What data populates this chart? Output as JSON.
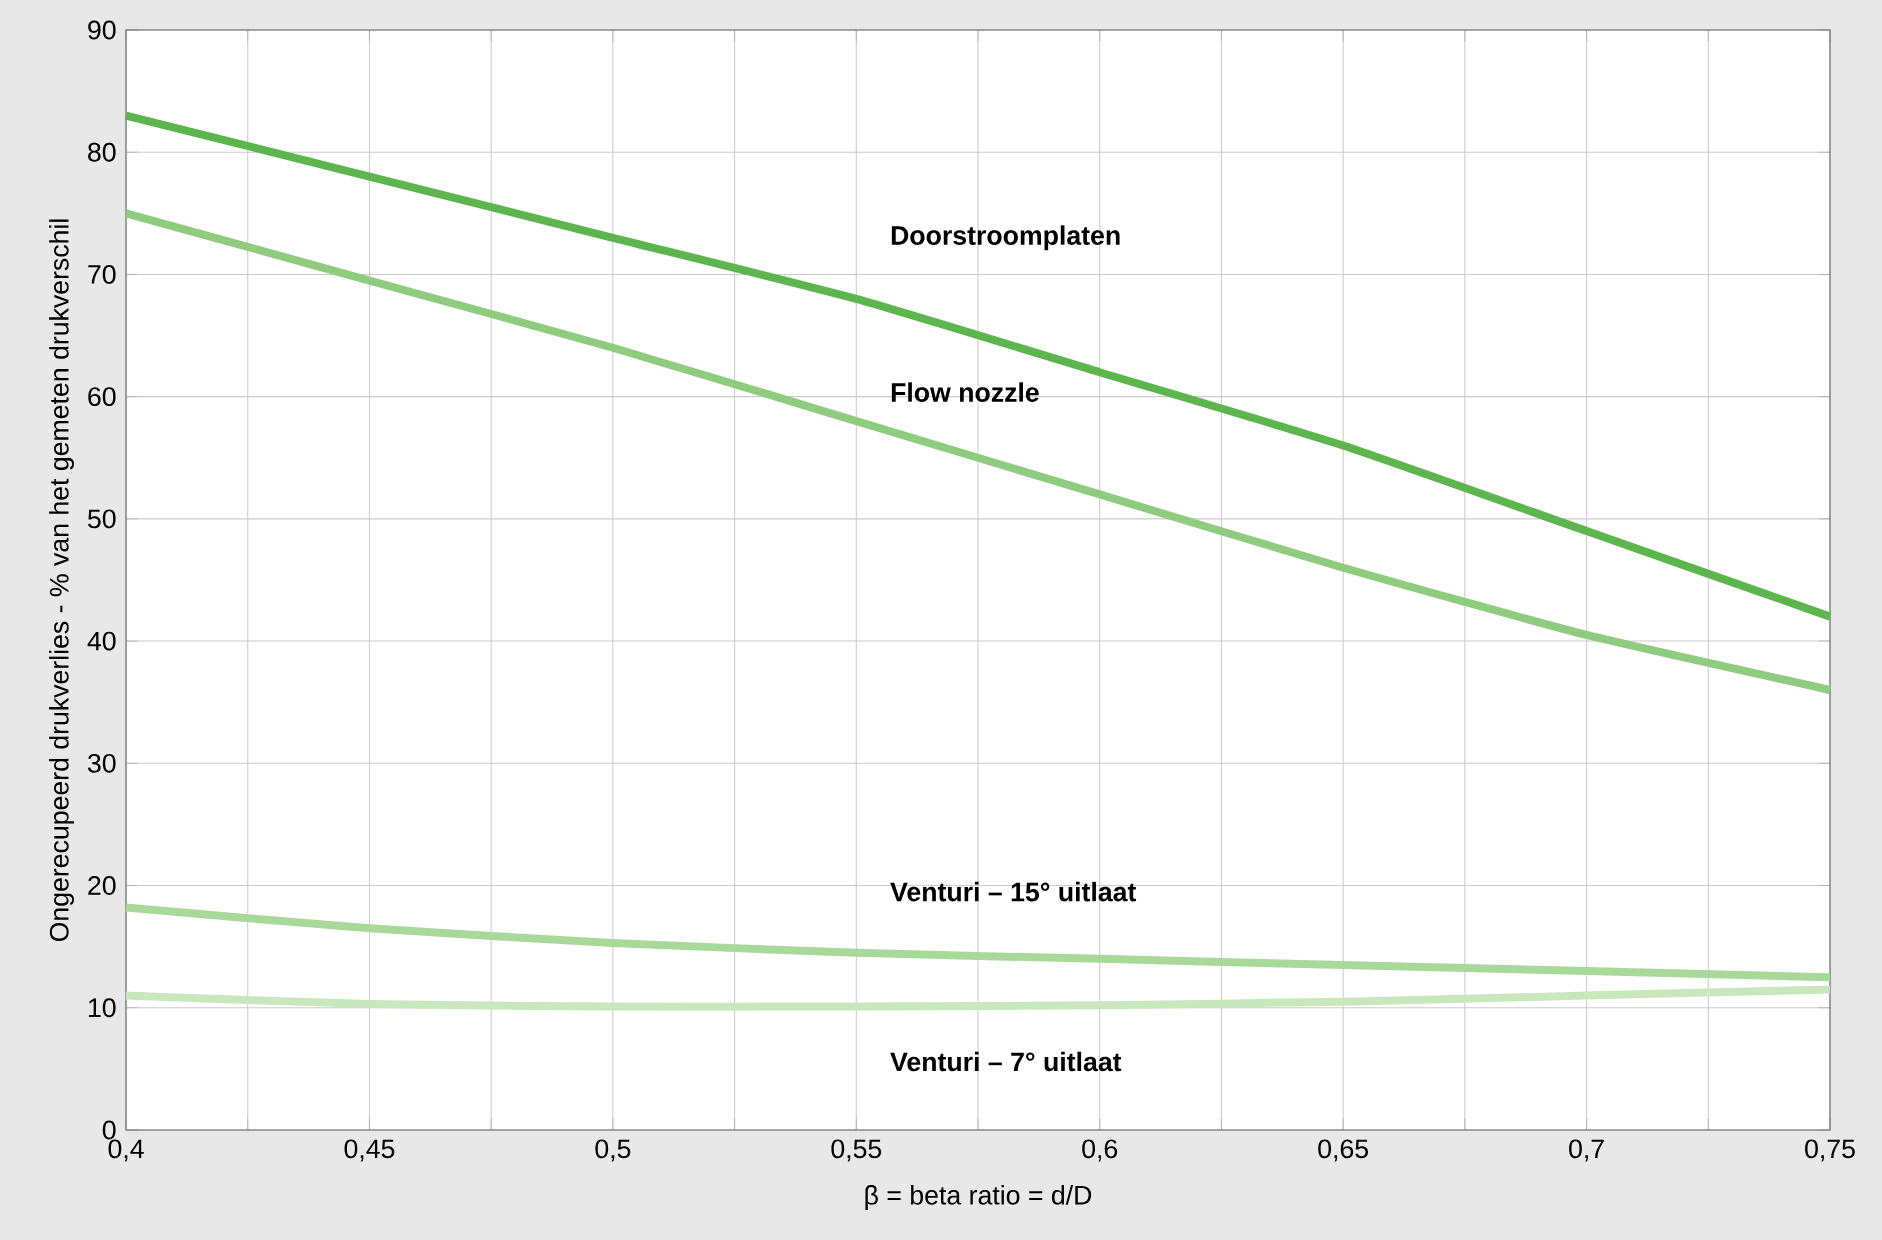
{
  "chart_data": {
    "type": "line",
    "xlabel": "β = beta ratio = d/D",
    "ylabel": "Ongerecupeerd drukverlies - % van het gemeten drukverschil",
    "x": [
      0.4,
      0.45,
      0.5,
      0.55,
      0.6,
      0.65,
      0.7,
      0.75
    ],
    "series": [
      {
        "name": "Doorstroomplaten",
        "color": "#5cb54d",
        "values": [
          83,
          78,
          73,
          68,
          62,
          56,
          49,
          42
        ]
      },
      {
        "name": "Flow nozzle",
        "color": "#8fcc7f",
        "values": [
          75,
          69.5,
          64,
          58,
          52,
          46,
          40.5,
          36
        ]
      },
      {
        "name": "Venturi – 15° uitlaat",
        "color": "#a9d99a",
        "values": [
          18.2,
          16.5,
          15.3,
          14.5,
          14,
          13.5,
          13,
          12.5
        ]
      },
      {
        "name": "Venturi – 7° uitlaat",
        "color": "#c9e7bc",
        "values": [
          11,
          10.3,
          10.1,
          10.1,
          10.2,
          10.5,
          11,
          11.5
        ]
      }
    ],
    "xlim": [
      0.4,
      0.75
    ],
    "ylim": [
      0,
      90
    ],
    "xticks": [
      {
        "value": 0.4,
        "label": "0,4"
      },
      {
        "value": 0.425,
        "label": null
      },
      {
        "value": 0.45,
        "label": "0,45"
      },
      {
        "value": 0.475,
        "label": null
      },
      {
        "value": 0.5,
        "label": "0,5"
      },
      {
        "value": 0.525,
        "label": null
      },
      {
        "value": 0.55,
        "label": "0,55"
      },
      {
        "value": 0.575,
        "label": null
      },
      {
        "value": 0.6,
        "label": "0,6"
      },
      {
        "value": 0.625,
        "label": null
      },
      {
        "value": 0.65,
        "label": "0,65"
      },
      {
        "value": 0.675,
        "label": null
      },
      {
        "value": 0.7,
        "label": "0,7"
      },
      {
        "value": 0.725,
        "label": null
      },
      {
        "value": 0.75,
        "label": "0,75"
      }
    ],
    "yticks": [
      0,
      10,
      20,
      30,
      40,
      50,
      60,
      70,
      80,
      90
    ],
    "grid": true,
    "legend": false,
    "marker": "none",
    "line_style": "solid"
  }
}
